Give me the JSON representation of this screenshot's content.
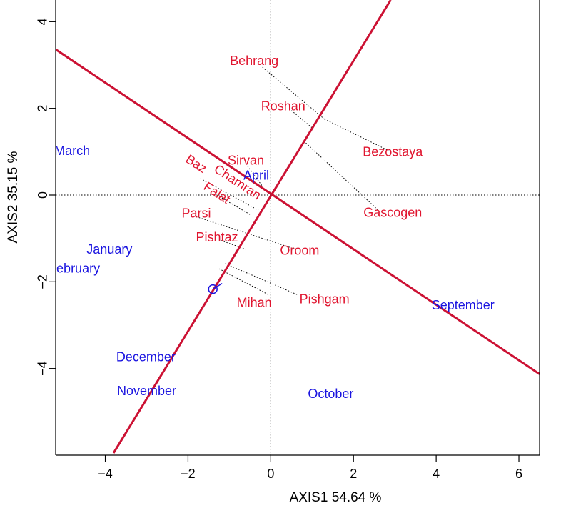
{
  "chart_data": {
    "type": "scatter",
    "xlabel": "AXIS1 54.64 %",
    "ylabel": "AXIS2 35.15 %",
    "xlim": [
      -5.2,
      6.5
    ],
    "ylim": [
      -6.0,
      4.5
    ],
    "x_ticks": [
      -4,
      -2,
      0,
      2,
      4,
      6
    ],
    "y_ticks": [
      -4,
      -2,
      0,
      2,
      4
    ],
    "x_tick_labels": [
      "−4",
      "−2",
      "0",
      "2",
      "4",
      "6"
    ],
    "y_tick_labels": [
      "−4",
      "−2",
      "0",
      "2",
      "4"
    ],
    "reference_lines": [
      "x = 0",
      "y = 0"
    ],
    "colors": {
      "genotypes": "#e0152f",
      "environments": "#1a14e0",
      "axis_lines": "#cc1133"
    },
    "series": [
      {
        "name": "genotypes",
        "points": [
          {
            "label": "Behrang",
            "x": -0.4,
            "y": 3.1
          },
          {
            "label": "Roshan",
            "x": 0.3,
            "y": 2.05
          },
          {
            "label": "Bezostaya",
            "x": 2.95,
            "y": 1.0
          },
          {
            "label": "Sirvan",
            "x": -0.6,
            "y": 0.8
          },
          {
            "label": "Baz",
            "x": -1.8,
            "y": 0.72
          },
          {
            "label": "Chamran",
            "x": -0.8,
            "y": 0.3
          },
          {
            "label": "Falat",
            "x": -1.3,
            "y": 0.05
          },
          {
            "label": "Gascogen",
            "x": 2.95,
            "y": -0.4
          },
          {
            "label": "Parsi",
            "x": -1.8,
            "y": -0.42
          },
          {
            "label": "Pishtaz",
            "x": -1.3,
            "y": -0.97
          },
          {
            "label": "Oroom",
            "x": 0.7,
            "y": -1.28
          },
          {
            "label": "Pishgam",
            "x": 1.3,
            "y": -2.4
          },
          {
            "label": "Mihan",
            "x": -0.4,
            "y": -2.48
          }
        ]
      },
      {
        "name": "environments",
        "points": [
          {
            "label": "March",
            "x": -4.8,
            "y": 1.02
          },
          {
            "label": "April",
            "x": -0.35,
            "y": 0.45
          },
          {
            "label": "January",
            "x": -3.9,
            "y": -1.25
          },
          {
            "label": "February",
            "x": -4.75,
            "y": -1.69
          },
          {
            "label": "September",
            "x": 4.65,
            "y": -2.54
          },
          {
            "label": "December",
            "x": -3.02,
            "y": -3.73
          },
          {
            "label": "November",
            "x": -3.0,
            "y": -4.52
          },
          {
            "label": "October",
            "x": 1.45,
            "y": -4.58
          }
        ]
      }
    ],
    "average_environment_marker": {
      "x": -1.4,
      "y": -2.17
    },
    "ate_abscissa": {
      "point1": [
        -5.2,
        3.36
      ],
      "point2": [
        6.5,
        -4.13
      ]
    },
    "ate_ordinate": {
      "point1": [
        -3.8,
        -5.95
      ],
      "point2": [
        2.9,
        4.5
      ]
    },
    "projections": [
      {
        "from": [
          -0.2,
          2.95
        ],
        "to": [
          1.3,
          1.75
        ]
      },
      {
        "from": [
          1.3,
          1.75
        ],
        "to": [
          2.9,
          1.0
        ]
      },
      {
        "from": [
          0.5,
          1.95
        ],
        "to": [
          1.0,
          1.55
        ]
      },
      {
        "from": [
          0.85,
          1.2
        ],
        "to": [
          2.6,
          -0.35
        ]
      },
      {
        "from": [
          -0.6,
          0.72
        ],
        "to": [
          -0.2,
          0.2
        ]
      },
      {
        "from": [
          -1.7,
          0.38
        ],
        "to": [
          -0.3,
          -0.35
        ]
      },
      {
        "from": [
          -1.3,
          0.0
        ],
        "to": [
          -0.5,
          -0.45
        ]
      },
      {
        "from": [
          -1.8,
          -0.5
        ],
        "to": [
          0.6,
          -1.25
        ]
      },
      {
        "from": [
          -1.2,
          -1.05
        ],
        "to": [
          -0.6,
          -1.25
        ]
      },
      {
        "from": [
          -1.1,
          -1.58
        ],
        "to": [
          0.65,
          -2.3
        ]
      },
      {
        "from": [
          -1.25,
          -1.7
        ],
        "to": [
          -0.05,
          -2.3
        ]
      }
    ]
  }
}
